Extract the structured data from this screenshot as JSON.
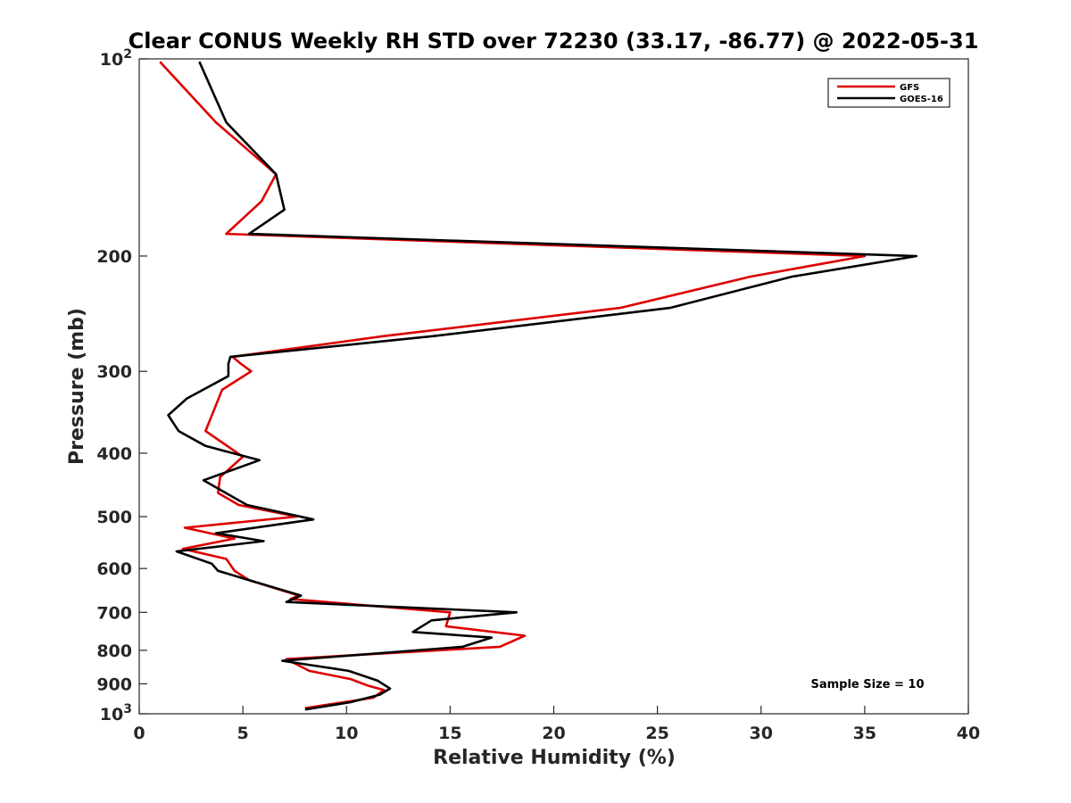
{
  "chart_data": {
    "type": "line",
    "title": "Clear CONUS Weekly RH STD over 72230 (33.17, -86.77) @ 2022-05-31",
    "xlabel": "Relative Humidity (%)",
    "ylabel": "Pressure (mb)",
    "xlim": [
      0,
      40
    ],
    "ylim": [
      100,
      1000
    ],
    "yscale": "log",
    "y_reversed": true,
    "grid": false,
    "legend_position": "top-right",
    "x_ticks": [
      0,
      5,
      10,
      15,
      20,
      25,
      30,
      35,
      40
    ],
    "x_tick_labels": [
      "0",
      "5",
      "10",
      "15",
      "20",
      "25",
      "30",
      "35",
      "40"
    ],
    "y_ticks": [
      100,
      200,
      300,
      400,
      500,
      600,
      700,
      800,
      900,
      1000
    ],
    "y_tick_labels": [
      {
        "base": "10",
        "exp": "2"
      },
      {
        "base": "200",
        "exp": ""
      },
      {
        "base": "300",
        "exp": ""
      },
      {
        "base": "400",
        "exp": ""
      },
      {
        "base": "500",
        "exp": ""
      },
      {
        "base": "600",
        "exp": ""
      },
      {
        "base": "700",
        "exp": ""
      },
      {
        "base": "800",
        "exp": ""
      },
      {
        "base": "900",
        "exp": ""
      },
      {
        "base": "10",
        "exp": "3"
      }
    ],
    "series": [
      {
        "name": "GFS",
        "color": "#dd0000",
        "pressure": [
          101,
          125,
          150,
          165,
          185,
          200,
          215,
          240,
          265,
          285,
          292,
          300,
          320,
          370,
          405,
          435,
          460,
          480,
          500,
          520,
          540,
          560,
          580,
          605,
          625,
          660,
          668,
          700,
          735,
          760,
          790,
          825,
          860,
          885,
          905,
          920,
          945,
          980
        ],
        "values": [
          1.0,
          3.7,
          6.6,
          5.9,
          4.2,
          35.0,
          29.5,
          23.2,
          11.8,
          4.5,
          4.9,
          5.4,
          4.0,
          3.2,
          5.0,
          3.9,
          3.8,
          4.8,
          7.6,
          2.2,
          4.6,
          2.1,
          4.2,
          4.6,
          5.3,
          7.7,
          7.3,
          15.0,
          14.8,
          18.6,
          17.4,
          7.1,
          8.2,
          10.2,
          11.0,
          11.8,
          11.3,
          8.0
        ]
      },
      {
        "name": "GOES-16",
        "color": "#000000",
        "pressure": [
          101,
          125,
          150,
          170,
          185,
          200,
          215,
          240,
          265,
          285,
          292,
          305,
          330,
          350,
          370,
          390,
          410,
          440,
          480,
          505,
          530,
          545,
          565,
          590,
          605,
          625,
          660,
          675,
          700,
          720,
          750,
          765,
          790,
          830,
          860,
          890,
          915,
          935,
          960,
          985
        ],
        "values": [
          2.9,
          4.2,
          6.6,
          7.0,
          5.3,
          37.5,
          31.5,
          25.6,
          14.2,
          4.4,
          4.3,
          4.3,
          2.3,
          1.4,
          1.9,
          3.2,
          5.8,
          3.1,
          5.2,
          8.4,
          3.7,
          6.0,
          1.8,
          3.5,
          3.8,
          5.3,
          7.8,
          7.1,
          18.2,
          14.1,
          13.2,
          17.0,
          15.6,
          6.9,
          10.1,
          11.5,
          12.1,
          11.6,
          10.2,
          8.0
        ]
      }
    ],
    "annotation": "Sample Size = 10"
  }
}
